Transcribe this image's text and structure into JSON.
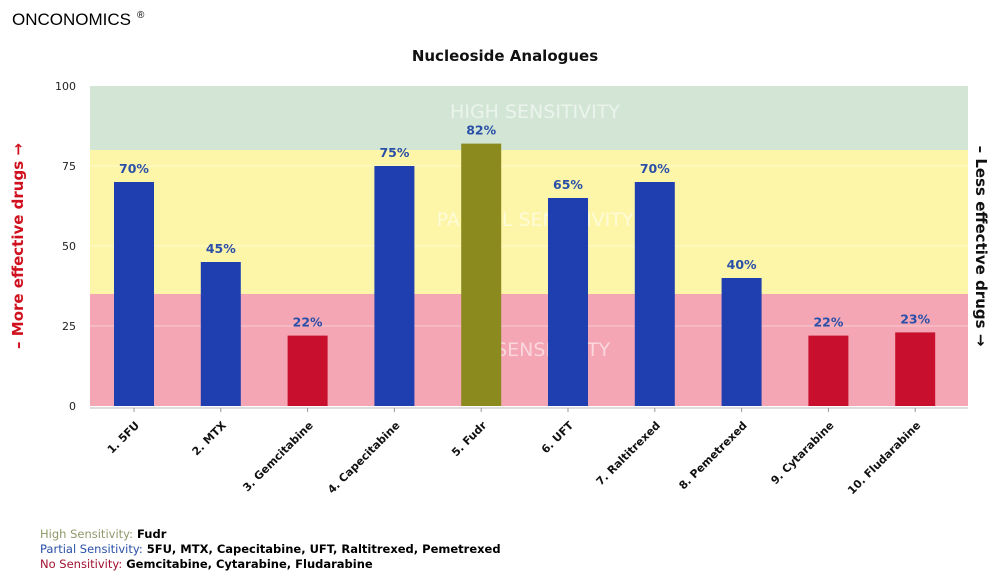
{
  "brand": {
    "name": "ONCONOMICS",
    "mark": "®"
  },
  "chart_data": {
    "type": "bar",
    "title": "Nucleoside Analogues",
    "categories": [
      "1. 5FU",
      "2. MTX",
      "3. Gemcitabine",
      "4. Capecitabine",
      "5. Fudr",
      "6. UFT",
      "7. Raltitrexed",
      "8. Pemetrexed",
      "9. Cytarabine",
      "10. Fludarabine"
    ],
    "values": [
      70,
      45,
      22,
      75,
      82,
      65,
      70,
      40,
      22,
      23
    ],
    "data_labels": [
      "70%",
      "45%",
      "22%",
      "75%",
      "82%",
      "65%",
      "70%",
      "40%",
      "22%",
      "23%"
    ],
    "sensitivity": [
      "partial",
      "partial",
      "none",
      "partial",
      "high",
      "partial",
      "partial",
      "partial",
      "none",
      "none"
    ],
    "ylim": [
      0,
      100
    ],
    "yticks": [
      0,
      25,
      50,
      75,
      100
    ],
    "ylabel_left": "– More effective drugs →",
    "ylabel_right": "– Less effective drugs →",
    "bands": [
      {
        "name": "high",
        "label": "HIGH SENSITIVITY",
        "from": 80,
        "to": 100,
        "color": "#d3e6d6"
      },
      {
        "name": "partial",
        "label": "PARTIAL SENSITIVITY",
        "from": 35,
        "to": 80,
        "color": "#fdf6a8"
      },
      {
        "name": "none",
        "label": "NO SENSITIVITY",
        "from": 0,
        "to": 35,
        "color": "#f4a6b4"
      }
    ],
    "colors": {
      "high": "#8a8a1e",
      "partial": "#1f3fb0",
      "none": "#c8102e",
      "label": "#2a4fa8"
    }
  },
  "legend": [
    {
      "key": "High Sensitivity:",
      "value": "Fudr",
      "color": "#8f9a6a"
    },
    {
      "key": "Partial Sensitivity:",
      "value": "5FU, MTX, Capecitabine, UFT, Raltitrexed, Pemetrexed",
      "color": "#2a4fa8"
    },
    {
      "key": "No Sensitivity:",
      "value": "Gemcitabine, Cytarabine, Fludarabine",
      "color": "#a0102e"
    }
  ]
}
